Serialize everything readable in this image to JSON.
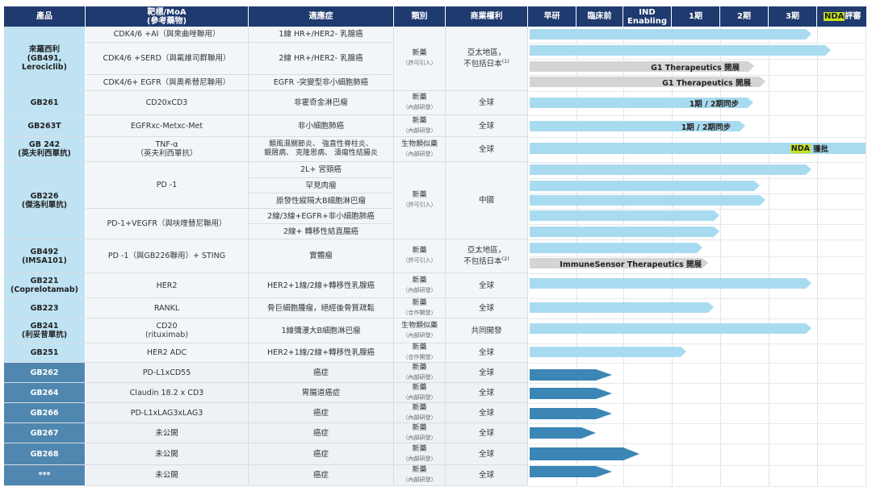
{
  "header": {
    "product": "產品",
    "target": "靶標/MoA\n(參考藥物)",
    "indication": "適應症",
    "category": "類別",
    "rights": "商業權利",
    "early": "早研",
    "preclinical": "臨床前",
    "ind": "IND\nEnabling",
    "p1": "1期",
    "p2": "2期",
    "p3": "3期",
    "nda_hl": "NDA",
    "nda_tail": "評審"
  },
  "products": [
    {
      "name": "來羅西利\n(GB491,\nLerociclib)"
    },
    {
      "name": "GB261"
    },
    {
      "name": "GB263T"
    },
    {
      "name": "GB 242\n(英夫利西單抗)"
    },
    {
      "name": "GB226\n(傑洛利單抗)"
    },
    {
      "name": "GB492\n(IMSA101)"
    },
    {
      "name": "GB221\n(Coprelotamab)"
    },
    {
      "name": "GB223"
    },
    {
      "name": "GB241\n(利妥昔單抗)"
    },
    {
      "name": "GB251"
    },
    {
      "name": "GB262"
    },
    {
      "name": "GB264"
    },
    {
      "name": "GB266"
    },
    {
      "name": "GB267"
    },
    {
      "name": "GB268"
    },
    {
      "name": "***"
    }
  ],
  "targets": [
    "CDK4/6 +AI（與來曲唑聯用）",
    "CDK4/6 +SERD（與氟維司群聯用）",
    "CDK4/6+ EGFR（與奧希替尼聯用）",
    "CD20xCD3",
    "EGFRxc-Metxc-Met",
    "TNF-α\n（英夫利西單抗）",
    "PD -1",
    "PD-1+VEGFR（與呋喹替尼聯用）",
    "PD -1（與GB226聯用）+ STING",
    "HER2",
    "RANKL",
    "CD20\n(rituximab)",
    "HER2 ADC",
    "PD-L1xCD55",
    "Claudin 18.2 x CD3",
    "PD-L1xLAG3xLAG3",
    "未公開",
    "未公開",
    "未公開"
  ],
  "indications": [
    "1線 HR+/HER2- 乳腺癌",
    "2線 HR+/HER2- 乳腺癌",
    "EGFR -突變型非小細胞肺癌",
    "非霍奇金淋巴瘤",
    "非小細胞肺癌",
    "類風濕關節炎、 強直性脊柱炎、\n銀屑病、 克隆恩病、 潰瘍性結腸炎",
    "2L+ 宮頸癌",
    "罕見肉瘤",
    "原發性縱隔大B細胞淋巴瘤",
    "2線/3線+EGFR+非小細胞肺癌",
    "2線+ 轉移性結直腸癌",
    "實體瘤",
    "HER2+1線/2線+轉移性乳腺癌",
    "骨巨細胞腫瘤，絕經後骨質疏鬆",
    "1線彌漫大B細胞淋巴瘤",
    "HER2+1線/2線+轉移性乳腺癌",
    "癌症",
    "胃腸道癌症",
    "癌症",
    "癌症",
    "癌症",
    "癌症"
  ],
  "types": {
    "new": "新藥",
    "biosim": "生物類似藥",
    "licensed": "（許可引入）",
    "internal": "（內部研發）",
    "partner": "（合作開發）"
  },
  "rights": {
    "apac1": "亞太地區，\n不包括日本",
    "apac1_note": "(1)",
    "apac2": "亞太地區，\n不包括日本",
    "apac2_note": "(2)",
    "global": "全球",
    "china": "中國",
    "co_dev": "共同開發"
  },
  "bar_labels": {
    "g1_a": "G1 Therapeutics  開展",
    "g1_b": "G1 Therapeutics  開展",
    "p12_a": "1期 / 2期同步",
    "p12_b": "1期 / 2期同步",
    "nda_hl": "NDA",
    "nda_tail": " 獲批",
    "immune": "ImmuneSensor  Therapeutics  開展"
  },
  "colors": {
    "header": "#1f3a6e",
    "light_blue": "#a9dbf0",
    "dark_blue": "#3b86b5",
    "gray_bar": "#d4d4d4",
    "nda_highlight": "#c8e21b",
    "product_light": "#bfe3f3",
    "product_dark": "#4f87b0"
  }
}
